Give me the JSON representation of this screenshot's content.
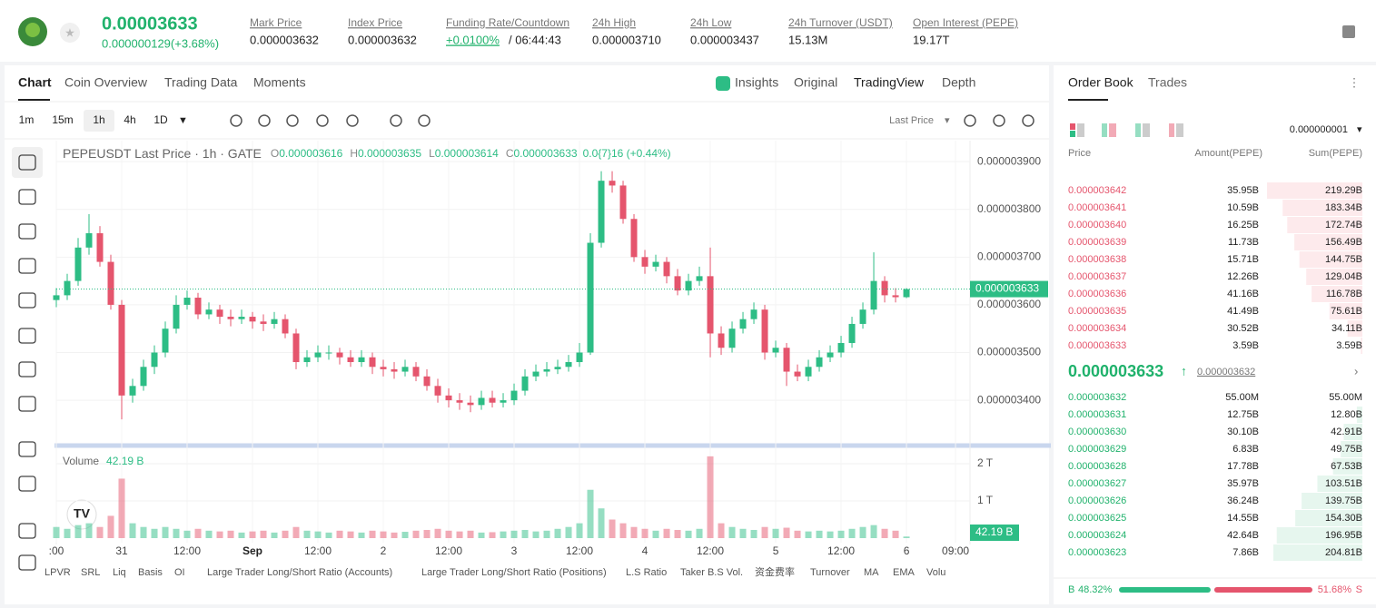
{
  "header": {
    "price": "0.00003633",
    "change": "0.000000129(+3.68%)",
    "stats": [
      {
        "label": "Mark Price",
        "value": "0.000003632"
      },
      {
        "label": "Index Price",
        "value": "0.000003632"
      },
      {
        "label": "Funding Rate/Countdown",
        "value": "+0.0100%",
        "extra": "/ 06:44:43"
      },
      {
        "label": "24h High",
        "value": "0.000003710"
      },
      {
        "label": "24h Low",
        "value": "0.000003437"
      },
      {
        "label": "24h Turnover (USDT)",
        "value": "15.13M"
      },
      {
        "label": "Open Interest (PEPE)",
        "value": "19.17T"
      }
    ]
  },
  "tabs": [
    "Chart",
    "Coin Overview",
    "Trading Data",
    "Moments"
  ],
  "chart_views": [
    "Insights",
    "Original",
    "TradingView",
    "Depth"
  ],
  "intervals": [
    "1m",
    "15m",
    "1h",
    "4h",
    "1D"
  ],
  "price_type": "Last Price",
  "chart_data": [
    {
      "type": "candlestick",
      "title": "PEPEUSDT Last Price · 1h · GATE",
      "legend": [
        {
          "label": "O",
          "value": "0.000003616"
        },
        {
          "label": "H",
          "value": "0.000003635"
        },
        {
          "label": "L",
          "value": "0.000003614"
        },
        {
          "label": "C",
          "value": "0.000003633"
        }
      ],
      "legend_change": "0.0{7}16 (+0.44%)",
      "up_color": "#2dbd85",
      "down_color": "#e5556d",
      "grid": true,
      "open": [
        3.61e-06,
        3.62e-06,
        3.65e-06,
        3.72e-06,
        3.75e-06,
        3.69e-06,
        3.6e-06,
        3.41e-06,
        3.43e-06,
        3.47e-06,
        3.5e-06,
        3.55e-06,
        3.6e-06,
        3.615e-06,
        3.58e-06,
        3.59e-06,
        3.575e-06,
        3.57e-06,
        3.575e-06,
        3.565e-06,
        3.56e-06,
        3.57e-06,
        3.54e-06,
        3.48e-06,
        3.49e-06,
        3.5e-06,
        3.5e-06,
        3.49e-06,
        3.48e-06,
        3.49e-06,
        3.47e-06,
        3.465e-06,
        3.46e-06,
        3.47e-06,
        3.45e-06,
        3.43e-06,
        3.41e-06,
        3.4e-06,
        3.395e-06,
        3.39e-06,
        3.405e-06,
        3.395e-06,
        3.4e-06,
        3.42e-06,
        3.45e-06,
        3.46e-06,
        3.465e-06,
        3.47e-06,
        3.48e-06,
        3.5e-06,
        3.73e-06,
        3.86e-06,
        3.85e-06,
        3.78e-06,
        3.7e-06,
        3.68e-06,
        3.69e-06,
        3.66e-06,
        3.63e-06,
        3.65e-06,
        3.66e-06,
        3.54e-06,
        3.51e-06,
        3.55e-06,
        3.57e-06,
        3.59e-06,
        3.5e-06,
        3.51e-06,
        3.46e-06,
        3.45e-06,
        3.47e-06,
        3.49e-06,
        3.5e-06,
        3.52e-06,
        3.56e-06,
        3.59e-06,
        3.65e-06,
        3.62e-06,
        3.616e-06
      ],
      "high": [
        3.635e-06,
        3.665e-06,
        3.74e-06,
        3.79e-06,
        3.765e-06,
        3.705e-06,
        3.61e-06,
        3.445e-06,
        3.485e-06,
        3.515e-06,
        3.565e-06,
        3.62e-06,
        3.63e-06,
        3.625e-06,
        3.605e-06,
        3.6e-06,
        3.59e-06,
        3.59e-06,
        3.585e-06,
        3.58e-06,
        3.585e-06,
        3.58e-06,
        3.55e-06,
        3.505e-06,
        3.515e-06,
        3.515e-06,
        3.51e-06,
        3.505e-06,
        3.505e-06,
        3.5e-06,
        3.485e-06,
        3.48e-06,
        3.485e-06,
        3.48e-06,
        3.465e-06,
        3.445e-06,
        3.425e-06,
        3.415e-06,
        3.41e-06,
        3.42e-06,
        3.42e-06,
        3.415e-06,
        3.435e-06,
        3.465e-06,
        3.475e-06,
        3.48e-06,
        3.485e-06,
        3.495e-06,
        3.52e-06,
        3.75e-06,
        3.88e-06,
        3.88e-06,
        3.86e-06,
        3.79e-06,
        3.715e-06,
        3.705e-06,
        3.7e-06,
        3.675e-06,
        3.665e-06,
        3.68e-06,
        3.72e-06,
        3.555e-06,
        3.565e-06,
        3.585e-06,
        3.605e-06,
        3.6e-06,
        3.525e-06,
        3.52e-06,
        3.475e-06,
        3.485e-06,
        3.505e-06,
        3.515e-06,
        3.535e-06,
        3.575e-06,
        3.605e-06,
        3.71e-06,
        3.66e-06,
        3.635e-06,
        3.635e-06
      ],
      "low": [
        3.595e-06,
        3.61e-06,
        3.64e-06,
        3.705e-06,
        3.68e-06,
        3.59e-06,
        3.36e-06,
        3.395e-06,
        3.42e-06,
        3.455e-06,
        3.49e-06,
        3.54e-06,
        3.59e-06,
        3.57e-06,
        3.57e-06,
        3.56e-06,
        3.555e-06,
        3.56e-06,
        3.55e-06,
        3.545e-06,
        3.55e-06,
        3.53e-06,
        3.465e-06,
        3.47e-06,
        3.48e-06,
        3.485e-06,
        3.475e-06,
        3.47e-06,
        3.47e-06,
        3.455e-06,
        3.45e-06,
        3.445e-06,
        3.45e-06,
        3.44e-06,
        3.42e-06,
        3.395e-06,
        3.385e-06,
        3.38e-06,
        3.375e-06,
        3.38e-06,
        3.385e-06,
        3.385e-06,
        3.39e-06,
        3.41e-06,
        3.44e-06,
        3.45e-06,
        3.455e-06,
        3.46e-06,
        3.47e-06,
        3.495e-06,
        3.72e-06,
        3.835e-06,
        3.77e-06,
        3.69e-06,
        3.665e-06,
        3.67e-06,
        3.645e-06,
        3.62e-06,
        3.62e-06,
        3.64e-06,
        3.49e-06,
        3.495e-06,
        3.5e-06,
        3.54e-06,
        3.56e-06,
        3.485e-06,
        3.49e-06,
        3.43e-06,
        3.44e-06,
        3.44e-06,
        3.46e-06,
        3.48e-06,
        3.49e-06,
        3.51e-06,
        3.55e-06,
        3.58e-06,
        3.605e-06,
        3.605e-06,
        3.614e-06
      ],
      "close": [
        3.62e-06,
        3.65e-06,
        3.72e-06,
        3.75e-06,
        3.69e-06,
        3.6e-06,
        3.41e-06,
        3.43e-06,
        3.47e-06,
        3.5e-06,
        3.55e-06,
        3.6e-06,
        3.615e-06,
        3.58e-06,
        3.59e-06,
        3.575e-06,
        3.57e-06,
        3.575e-06,
        3.565e-06,
        3.56e-06,
        3.57e-06,
        3.54e-06,
        3.48e-06,
        3.49e-06,
        3.5e-06,
        3.5e-06,
        3.49e-06,
        3.48e-06,
        3.49e-06,
        3.47e-06,
        3.465e-06,
        3.46e-06,
        3.47e-06,
        3.45e-06,
        3.43e-06,
        3.41e-06,
        3.4e-06,
        3.395e-06,
        3.39e-06,
        3.405e-06,
        3.395e-06,
        3.4e-06,
        3.42e-06,
        3.45e-06,
        3.46e-06,
        3.465e-06,
        3.47e-06,
        3.48e-06,
        3.5e-06,
        3.73e-06,
        3.86e-06,
        3.85e-06,
        3.78e-06,
        3.7e-06,
        3.68e-06,
        3.69e-06,
        3.66e-06,
        3.63e-06,
        3.65e-06,
        3.66e-06,
        3.54e-06,
        3.51e-06,
        3.55e-06,
        3.57e-06,
        3.59e-06,
        3.5e-06,
        3.51e-06,
        3.46e-06,
        3.45e-06,
        3.47e-06,
        3.49e-06,
        3.5e-06,
        3.52e-06,
        3.56e-06,
        3.59e-06,
        3.65e-06,
        3.62e-06,
        3.616e-06,
        3.633e-06
      ],
      "close_labels": {
        "78": "0.000003633"
      },
      "xlim": [
        0,
        83.83
      ],
      "xticks": [
        {
          "value": 0,
          "label": ":00"
        },
        {
          "value": 6,
          "label": "31"
        },
        {
          "value": 12,
          "label": "12:00"
        },
        {
          "value": 18,
          "label": "Sep"
        },
        {
          "value": 24,
          "label": "12:00"
        },
        {
          "value": 30,
          "label": "2"
        },
        {
          "value": 36,
          "label": "12:00"
        },
        {
          "value": 42,
          "label": "3"
        },
        {
          "value": 48,
          "label": "12:00"
        },
        {
          "value": 54,
          "label": "4"
        },
        {
          "value": 60,
          "label": "12:00"
        },
        {
          "value": 66,
          "label": "5"
        },
        {
          "value": 72,
          "label": "12:00"
        },
        {
          "value": 78,
          "label": "6"
        },
        {
          "value": 82.5,
          "label": "09:00"
        }
      ],
      "ylim": [
        3.307e-06,
        3.944e-06
      ],
      "yticks": [
        {
          "value": 3.9e-06,
          "label": "0.000003900"
        },
        {
          "value": 3.8e-06,
          "label": "0.000003800"
        },
        {
          "value": 3.7e-06,
          "label": "0.000003700"
        },
        {
          "value": 3.6e-06,
          "label": "0.000003600"
        },
        {
          "value": 3.5e-06,
          "label": "0.000003500"
        },
        {
          "value": 3.4e-06,
          "label": "0.000003400"
        }
      ]
    },
    {
      "type": "bar",
      "title": "Volume",
      "values": [
        300000000000.0,
        250000000000.0,
        350000000000.0,
        400000000000.0,
        300000000000.0,
        600000000000.0,
        1600000000000.0,
        400000000000.0,
        300000000000.0,
        250000000000.0,
        300000000000.0,
        250000000000.0,
        200000000000.0,
        250000000000.0,
        200000000000.0,
        180000000000.0,
        200000000000.0,
        150000000000.0,
        180000000000.0,
        200000000000.0,
        150000000000.0,
        200000000000.0,
        300000000000.0,
        200000000000.0,
        180000000000.0,
        150000000000.0,
        200000000000.0,
        180000000000.0,
        150000000000.0,
        200000000000.0,
        180000000000.0,
        150000000000.0,
        170000000000.0,
        200000000000.0,
        220000000000.0,
        250000000000.0,
        200000000000.0,
        180000000000.0,
        200000000000.0,
        150000000000.0,
        160000000000.0,
        180000000000.0,
        200000000000.0,
        220000000000.0,
        180000000000.0,
        200000000000.0,
        250000000000.0,
        300000000000.0,
        400000000000.0,
        1300000000000.0,
        800000000000.0,
        500000000000.0,
        400000000000.0,
        300000000000.0,
        250000000000.0,
        200000000000.0,
        250000000000.0,
        220000000000.0,
        200000000000.0,
        250000000000.0,
        2200000000000.0,
        400000000000.0,
        300000000000.0,
        250000000000.0,
        220000000000.0,
        300000000000.0,
        250000000000.0,
        280000000000.0,
        200000000000.0,
        180000000000.0,
        200000000000.0,
        180000000000.0,
        200000000000.0,
        250000000000.0,
        300000000000.0,
        350000000000.0,
        250000000000.0,
        200000000000.0,
        42190000000.0
      ],
      "value_labels": {
        "78": "42.19 B"
      },
      "ylim": [
        0,
        2270000000000.0
      ],
      "yticks": [
        {
          "value": 2000000000000.0,
          "label": "2 T"
        },
        {
          "value": 1000000000000.0,
          "label": "1 T"
        }
      ]
    }
  ],
  "indicators": [
    "LPVR",
    "SRL",
    "Liq",
    "Basis",
    "OI",
    "Large Trader Long/Short Ratio (Accounts)",
    "Large Trader Long/Short Ratio (Positions)",
    "L.S Ratio",
    "Taker B.S Vol.",
    "资金费率",
    "Turnover",
    "MA",
    "EMA",
    "Volu"
  ],
  "order_book": {
    "tabs": [
      "Order Book",
      "Trades"
    ],
    "precision": "0.000000001",
    "columns": [
      "Price",
      "Amount(PEPE)",
      "Sum(PEPE)"
    ],
    "asks": {
      "prices": [
        "0.000003642",
        "0.000003641",
        "0.000003640",
        "0.000003639",
        "0.000003638",
        "0.000003637",
        "0.000003636",
        "0.000003635",
        "0.000003634",
        "0.000003633"
      ],
      "amounts": [
        "35.95B",
        "10.59B",
        "16.25B",
        "11.73B",
        "15.71B",
        "12.26B",
        "41.16B",
        "41.49B",
        "30.52B",
        "3.59B"
      ],
      "sums": [
        219290000000.0,
        183340000000.0,
        172740000000.0,
        156490000000.0,
        144750000000.0,
        129040000000.0,
        116780000000.0,
        75610000000.0,
        34110000000.0,
        3590000000.0
      ],
      "sum_labels": [
        "219.29B",
        "183.34B",
        "172.74B",
        "156.49B",
        "144.75B",
        "129.04B",
        "116.78B",
        "75.61B",
        "34.11B",
        "3.59B"
      ]
    },
    "mid": {
      "price": "0.000003633",
      "mark": "0.000003632"
    },
    "bids": {
      "prices": [
        "0.000003632",
        "0.000003631",
        "0.000003630",
        "0.000003629",
        "0.000003628",
        "0.000003627",
        "0.000003626",
        "0.000003625",
        "0.000003624",
        "0.000003623"
      ],
      "amounts": [
        "55.00M",
        "12.75B",
        "30.10B",
        "6.83B",
        "17.78B",
        "35.97B",
        "36.24B",
        "14.55B",
        "42.64B",
        "7.86B"
      ],
      "sums": [
        55000000.0,
        12800000000.0,
        42910000000.0,
        49750000000.0,
        67530000000.0,
        103510000000.0,
        139750000000.0,
        154300000000.0,
        196950000000.0,
        204810000000.0
      ],
      "sum_labels": [
        "55.00M",
        "12.80B",
        "42.91B",
        "49.75B",
        "67.53B",
        "103.51B",
        "139.75B",
        "154.30B",
        "196.95B",
        "204.81B"
      ]
    },
    "ratio": {
      "buy_label": "B",
      "buy": 48.32,
      "buy_value_label": "48.32%",
      "sell": 51.68,
      "sell_value_label": "51.68%",
      "sell_label": "S"
    }
  }
}
